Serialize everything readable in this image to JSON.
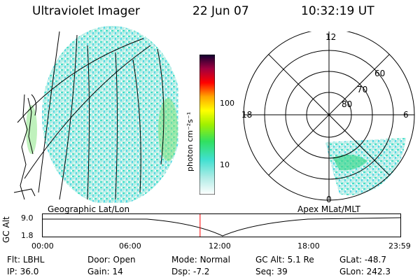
{
  "header": {
    "instrument": "Ultraviolet Imager",
    "date": "22 Jun 07",
    "time": "10:32:19 UT"
  },
  "colorbar": {
    "unit_label": "photon cm⁻²s⁻¹",
    "ticks": [
      "100",
      "10"
    ]
  },
  "left_panel": {
    "label": "Geographic Lat/Lon"
  },
  "right_panel": {
    "label": "Apex MLat/MLT",
    "mlt_labels": {
      "top": "12",
      "bottom": "0",
      "left": "18",
      "right": "6"
    },
    "lat_labels": [
      "60",
      "70",
      "80"
    ]
  },
  "timeline": {
    "ylabel": "GC Alt",
    "yticks": [
      "9.0",
      "1.8"
    ],
    "xticks": [
      "00:00",
      "06:00",
      "12:00",
      "18:00",
      "23:59"
    ],
    "current_time_fraction": 0.44
  },
  "info": {
    "row1": [
      {
        "label": "Flt:",
        "value": "LBHL"
      },
      {
        "label": "Door:",
        "value": "Open"
      },
      {
        "label": "Mode:",
        "value": "Normal"
      },
      {
        "label": "GC Alt:",
        "value": "5.1 Re"
      },
      {
        "label": "GLat:",
        "value": "-48.7"
      }
    ],
    "row2": [
      {
        "label": "IP:",
        "value": "36.0"
      },
      {
        "label": "Gain:",
        "value": "14"
      },
      {
        "label": "Dsp:",
        "value": "-7.2"
      },
      {
        "label": "Seq:",
        "value": "39"
      },
      {
        "label": "GLon:",
        "value": "242.3"
      }
    ]
  },
  "colors": {
    "marker": "#ff0000",
    "emission": "#40e0d0"
  }
}
